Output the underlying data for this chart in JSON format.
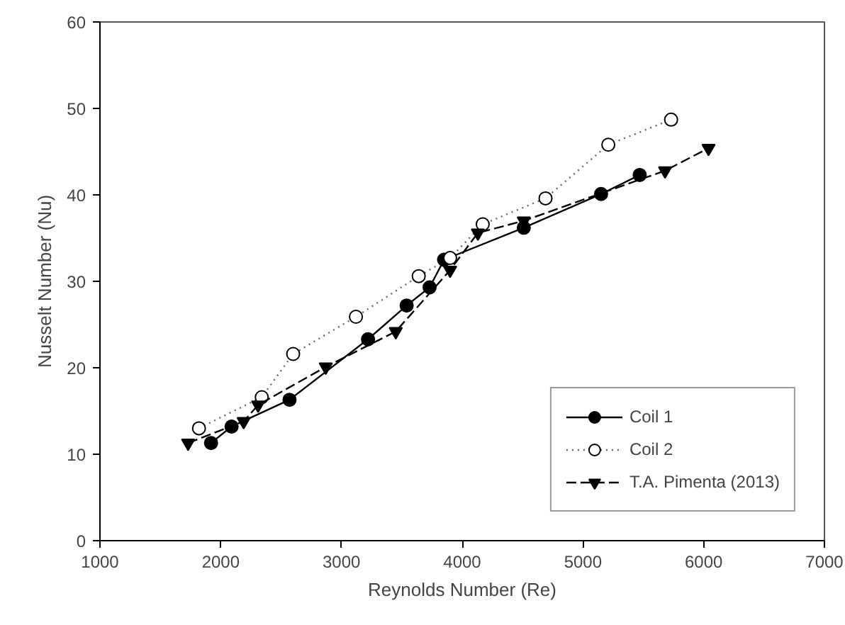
{
  "chart_data": {
    "type": "line",
    "xlabel": "Reynolds Number (Re)",
    "ylabel": "Nusselt Number (Nu)",
    "xlim": [
      1000,
      7000
    ],
    "xticks": [
      1000,
      2000,
      3000,
      4000,
      5000,
      6000,
      7000
    ],
    "ylim": [
      0,
      60
    ],
    "yticks": [
      0,
      10,
      20,
      30,
      40,
      50,
      60
    ],
    "grid": false,
    "legend": "bottom right",
    "series": [
      {
        "name": "Coil 1",
        "color": "#000000",
        "marker": "circle",
        "line_style": "solid",
        "x": [
          1920,
          2090,
          2570,
          3220,
          3540,
          3730,
          3850,
          4510,
          5150,
          5470
        ],
        "values": [
          11.3,
          13.2,
          16.3,
          23.3,
          27.2,
          29.3,
          32.5,
          36.2,
          40.1,
          42.3
        ]
      },
      {
        "name": "Coil 2",
        "color": "#000000",
        "marker": "circle_open",
        "line_style": "dotted",
        "x": [
          1820,
          2340,
          2600,
          3120,
          3640,
          3900,
          4170,
          4690,
          5210,
          5730
        ],
        "values": [
          13.0,
          16.6,
          21.6,
          25.9,
          30.6,
          32.7,
          36.6,
          39.6,
          45.8,
          48.7
        ]
      },
      {
        "name": "T.A. Pimenta (2013)",
        "color": "#000000",
        "marker": "triangle_down",
        "line_style": "dashed",
        "x": [
          1730,
          2190,
          2310,
          2870,
          3450,
          3900,
          4130,
          4510,
          5680,
          6040
        ],
        "values": [
          11.3,
          13.8,
          15.7,
          20.1,
          24.2,
          31.3,
          35.6,
          37.0,
          42.8,
          45.4
        ]
      }
    ]
  }
}
